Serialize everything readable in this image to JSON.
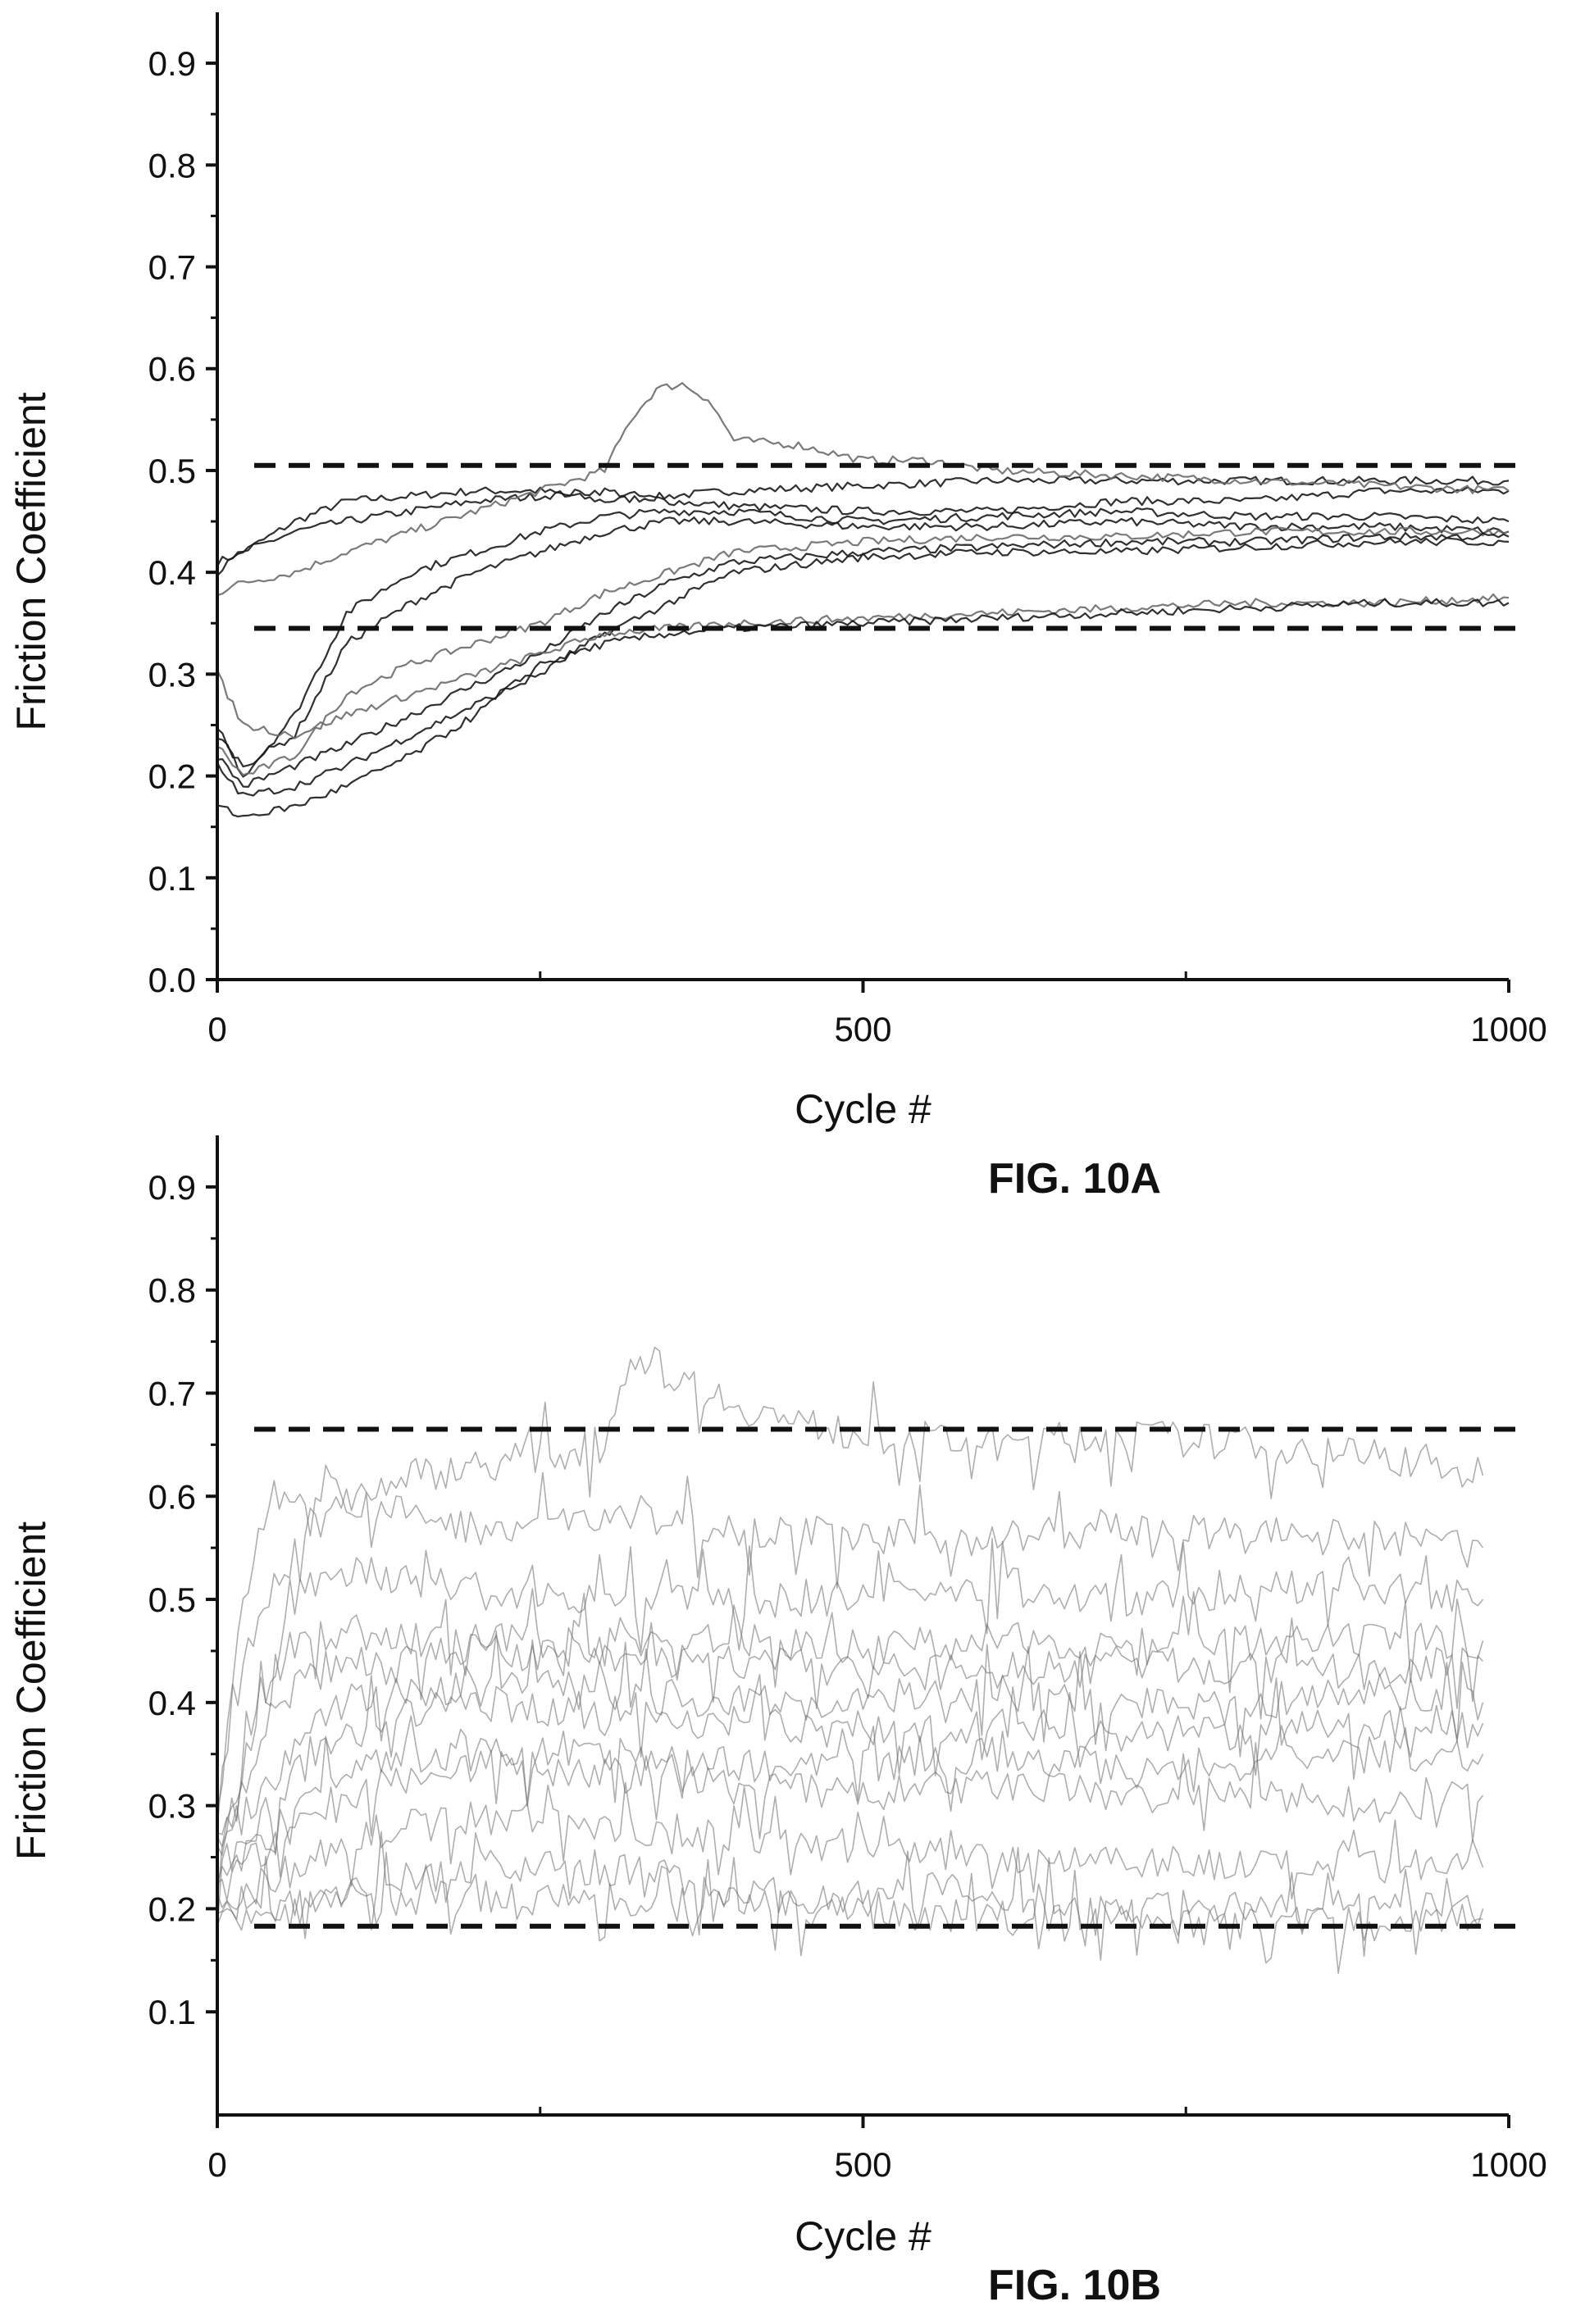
{
  "colors": {
    "ink": "#111111",
    "trace_dark": "#1a1a1a",
    "trace_gray": "#6b6b6b",
    "background": "#ffffff"
  },
  "chart_data": [
    {
      "id": "fig10a",
      "type": "line",
      "figure_label": "FIG. 10A",
      "xlabel": "Cycle #",
      "ylabel": "Friction Coefficient",
      "xlim": [
        0,
        1000
      ],
      "ylim": [
        0,
        0.95
      ],
      "x_ticks": [
        0,
        500,
        1000
      ],
      "x_tick_labels": [
        "0",
        "500",
        "1000"
      ],
      "y_ticks": [
        0.0,
        0.1,
        0.2,
        0.3,
        0.4,
        0.5,
        0.6,
        0.7,
        0.8,
        0.9
      ],
      "y_tick_labels": [
        "0.0",
        "0.1",
        "0.2",
        "0.3",
        "0.4",
        "0.5",
        "0.6",
        "0.7",
        "0.8",
        "0.9"
      ],
      "reference_lines": [
        0.505,
        0.345
      ],
      "grid": false,
      "series": [
        {
          "x": [
            0,
            20,
            60,
            100,
            150,
            200,
            250,
            300,
            350,
            400,
            500,
            600,
            700,
            800,
            900,
            1000
          ],
          "y": [
            0.41,
            0.42,
            0.45,
            0.47,
            0.475,
            0.48,
            0.48,
            0.47,
            0.475,
            0.48,
            0.485,
            0.49,
            0.49,
            0.49,
            0.49,
            0.49
          ]
        },
        {
          "x": [
            0,
            20,
            60,
            100,
            150,
            200,
            250,
            300,
            350,
            400,
            500,
            600,
            700,
            800,
            900,
            1000
          ],
          "y": [
            0.4,
            0.42,
            0.44,
            0.45,
            0.46,
            0.47,
            0.475,
            0.48,
            0.47,
            0.465,
            0.46,
            0.46,
            0.47,
            0.47,
            0.48,
            0.48
          ]
        },
        {
          "x": [
            0,
            20,
            60,
            100,
            150,
            200,
            250,
            300,
            320,
            340,
            360,
            380,
            400,
            450,
            500,
            550,
            600,
            700,
            800,
            900,
            1000
          ],
          "y": [
            0.38,
            0.39,
            0.4,
            0.42,
            0.44,
            0.46,
            0.48,
            0.5,
            0.55,
            0.58,
            0.585,
            0.57,
            0.53,
            0.525,
            0.51,
            0.51,
            0.5,
            0.495,
            0.49,
            0.485,
            0.48
          ]
        },
        {
          "x": [
            0,
            20,
            60,
            100,
            150,
            200,
            250,
            300,
            350,
            400,
            500,
            600,
            700,
            800,
            900,
            1000
          ],
          "y": [
            0.25,
            0.2,
            0.26,
            0.36,
            0.4,
            0.42,
            0.44,
            0.455,
            0.46,
            0.46,
            0.45,
            0.455,
            0.46,
            0.455,
            0.455,
            0.45
          ]
        },
        {
          "x": [
            0,
            20,
            60,
            100,
            150,
            200,
            250,
            300,
            350,
            400,
            500,
            600,
            700,
            800,
            900,
            1000
          ],
          "y": [
            0.24,
            0.21,
            0.24,
            0.33,
            0.37,
            0.4,
            0.42,
            0.44,
            0.45,
            0.45,
            0.445,
            0.445,
            0.45,
            0.445,
            0.445,
            0.44
          ]
        },
        {
          "x": [
            0,
            20,
            60,
            100,
            150,
            200,
            250,
            300,
            350,
            400,
            500,
            600,
            700,
            800,
            900,
            1000
          ],
          "y": [
            0.23,
            0.2,
            0.22,
            0.28,
            0.31,
            0.33,
            0.35,
            0.38,
            0.4,
            0.42,
            0.43,
            0.435,
            0.435,
            0.44,
            0.44,
            0.44
          ]
        },
        {
          "x": [
            0,
            20,
            60,
            100,
            150,
            200,
            250,
            300,
            350,
            400,
            500,
            600,
            700,
            800,
            900,
            1000
          ],
          "y": [
            0.22,
            0.19,
            0.21,
            0.23,
            0.26,
            0.29,
            0.32,
            0.36,
            0.39,
            0.41,
            0.42,
            0.425,
            0.43,
            0.43,
            0.435,
            0.435
          ]
        },
        {
          "x": [
            0,
            20,
            60,
            100,
            150,
            200,
            250,
            300,
            350,
            400,
            500,
            600,
            700,
            800,
            900,
            1000
          ],
          "y": [
            0.21,
            0.18,
            0.19,
            0.21,
            0.24,
            0.27,
            0.3,
            0.34,
            0.37,
            0.4,
            0.415,
            0.42,
            0.42,
            0.425,
            0.43,
            0.43
          ]
        },
        {
          "x": [
            0,
            20,
            60,
            100,
            150,
            200,
            250,
            300,
            350,
            400,
            500,
            600,
            700,
            800,
            900,
            1000
          ],
          "y": [
            0.3,
            0.25,
            0.24,
            0.26,
            0.28,
            0.3,
            0.32,
            0.34,
            0.345,
            0.35,
            0.355,
            0.36,
            0.365,
            0.37,
            0.37,
            0.375
          ]
        },
        {
          "x": [
            0,
            20,
            60,
            100,
            150,
            200,
            250,
            300,
            350,
            400,
            500,
            600,
            700,
            800,
            900,
            1000
          ],
          "y": [
            0.17,
            0.16,
            0.17,
            0.19,
            0.22,
            0.26,
            0.31,
            0.33,
            0.34,
            0.345,
            0.35,
            0.355,
            0.36,
            0.365,
            0.37,
            0.37
          ]
        }
      ]
    },
    {
      "id": "fig10b",
      "type": "line",
      "figure_label": "FIG. 10B",
      "xlabel": "Cycle #",
      "ylabel": "Friction Coefficient",
      "xlim": [
        0,
        1000
      ],
      "ylim": [
        0,
        0.95
      ],
      "x_ticks": [
        0,
        500,
        1000
      ],
      "x_tick_labels": [
        "0",
        "500",
        "1000"
      ],
      "y_ticks": [
        0.1,
        0.2,
        0.3,
        0.4,
        0.5,
        0.6,
        0.7,
        0.8,
        0.9
      ],
      "y_tick_labels": [
        "0.1",
        "0.2",
        "0.3",
        "0.4",
        "0.5",
        "0.6",
        "0.7",
        "0.8",
        "0.9"
      ],
      "reference_lines": [
        0.665,
        0.183
      ],
      "grid": false,
      "series": [
        {
          "x": [
            0,
            20,
            60,
            100,
            150,
            200,
            250,
            300,
            320,
            350,
            400,
            450,
            500,
            600,
            700,
            800,
            900,
            980
          ],
          "y": [
            0.3,
            0.45,
            0.55,
            0.6,
            0.62,
            0.63,
            0.64,
            0.65,
            0.74,
            0.72,
            0.69,
            0.67,
            0.66,
            0.65,
            0.66,
            0.65,
            0.64,
            0.62
          ]
        },
        {
          "x": [
            0,
            20,
            40,
            60,
            80,
            100,
            150,
            200,
            300,
            400,
            500,
            600,
            700,
            800,
            900,
            980
          ],
          "y": [
            0.28,
            0.5,
            0.6,
            0.61,
            0.61,
            0.6,
            0.58,
            0.57,
            0.58,
            0.57,
            0.56,
            0.56,
            0.57,
            0.56,
            0.56,
            0.55
          ]
        },
        {
          "x": [
            0,
            30,
            60,
            100,
            150,
            200,
            300,
            400,
            500,
            600,
            700,
            800,
            900,
            980
          ],
          "y": [
            0.25,
            0.4,
            0.46,
            0.47,
            0.46,
            0.46,
            0.46,
            0.46,
            0.455,
            0.46,
            0.46,
            0.455,
            0.46,
            0.46
          ]
        },
        {
          "x": [
            0,
            30,
            60,
            100,
            150,
            200,
            300,
            400,
            500,
            600,
            700,
            800,
            900,
            980
          ],
          "y": [
            0.24,
            0.35,
            0.42,
            0.44,
            0.45,
            0.45,
            0.44,
            0.44,
            0.43,
            0.43,
            0.44,
            0.43,
            0.43,
            0.44
          ]
        },
        {
          "x": [
            0,
            30,
            60,
            100,
            150,
            200,
            300,
            400,
            500,
            600,
            700,
            800,
            900,
            980
          ],
          "y": [
            0.23,
            0.28,
            0.33,
            0.37,
            0.39,
            0.4,
            0.39,
            0.38,
            0.37,
            0.38,
            0.37,
            0.37,
            0.38,
            0.38
          ]
        },
        {
          "x": [
            0,
            30,
            60,
            100,
            150,
            200,
            300,
            400,
            500,
            600,
            700,
            800,
            900,
            980
          ],
          "y": [
            0.22,
            0.25,
            0.28,
            0.31,
            0.33,
            0.34,
            0.33,
            0.32,
            0.31,
            0.32,
            0.31,
            0.31,
            0.3,
            0.31
          ]
        },
        {
          "x": [
            0,
            30,
            60,
            100,
            150,
            200,
            300,
            400,
            500,
            600,
            700,
            800,
            900,
            980
          ],
          "y": [
            0.21,
            0.22,
            0.24,
            0.27,
            0.28,
            0.29,
            0.28,
            0.27,
            0.26,
            0.25,
            0.25,
            0.24,
            0.24,
            0.24
          ]
        },
        {
          "x": [
            0,
            30,
            60,
            100,
            150,
            200,
            250,
            300,
            350,
            400,
            450,
            500,
            550,
            600,
            700,
            800,
            900,
            980
          ],
          "y": [
            0.2,
            0.2,
            0.21,
            0.22,
            0.23,
            0.24,
            0.24,
            0.24,
            0.23,
            0.22,
            0.21,
            0.21,
            0.22,
            0.21,
            0.2,
            0.2,
            0.2,
            0.2
          ]
        },
        {
          "x": [
            0,
            30,
            60,
            100,
            150,
            200,
            300,
            400,
            500,
            600,
            700,
            800,
            900,
            980
          ],
          "y": [
            0.19,
            0.19,
            0.2,
            0.21,
            0.21,
            0.21,
            0.21,
            0.2,
            0.2,
            0.19,
            0.19,
            0.19,
            0.185,
            0.19
          ]
        },
        {
          "x": [
            0,
            30,
            60,
            100,
            150,
            200,
            300,
            400,
            500,
            600,
            700,
            800,
            900,
            980
          ],
          "y": [
            0.26,
            0.38,
            0.5,
            0.53,
            0.52,
            0.51,
            0.5,
            0.5,
            0.5,
            0.51,
            0.5,
            0.51,
            0.51,
            0.5
          ]
        },
        {
          "x": [
            0,
            30,
            60,
            100,
            150,
            200,
            300,
            400,
            500,
            600,
            700,
            800,
            900,
            980
          ],
          "y": [
            0.27,
            0.3,
            0.36,
            0.4,
            0.41,
            0.42,
            0.41,
            0.4,
            0.4,
            0.41,
            0.4,
            0.4,
            0.41,
            0.4
          ]
        },
        {
          "x": [
            0,
            30,
            60,
            100,
            150,
            200,
            300,
            400,
            500,
            600,
            700,
            800,
            900,
            980
          ],
          "y": [
            0.24,
            0.26,
            0.3,
            0.34,
            0.35,
            0.35,
            0.35,
            0.34,
            0.34,
            0.35,
            0.34,
            0.34,
            0.35,
            0.35
          ]
        }
      ]
    }
  ]
}
